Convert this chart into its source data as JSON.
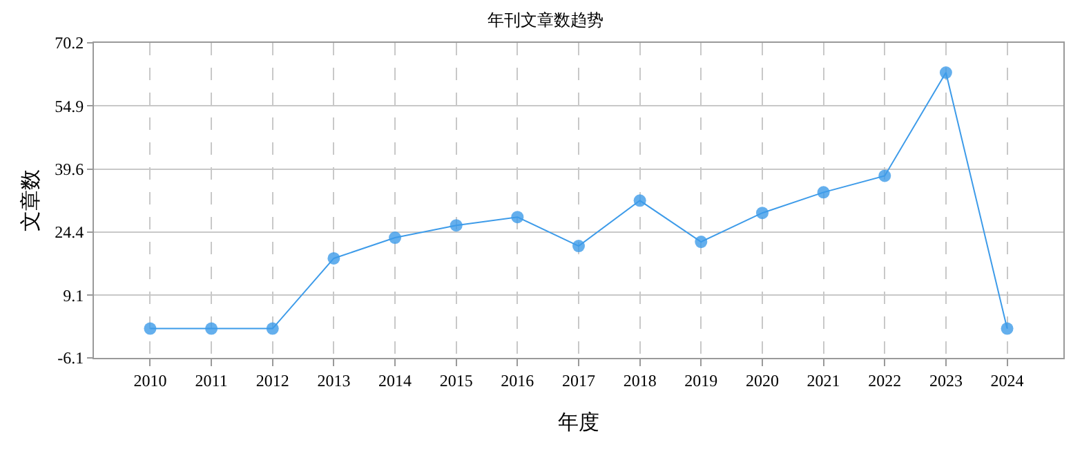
{
  "chart_data": {
    "type": "line",
    "title": "年刊文章数趋势",
    "xlabel": "年度",
    "ylabel": "文章数",
    "categories": [
      "2010",
      "2011",
      "2012",
      "2013",
      "2014",
      "2015",
      "2016",
      "2017",
      "2018",
      "2019",
      "2020",
      "2021",
      "2022",
      "2023",
      "2024"
    ],
    "series": [
      {
        "color": "#3d9be9",
        "values": [
          1,
          1,
          1,
          18,
          23,
          26,
          28,
          21,
          32,
          22,
          29,
          34,
          38,
          63,
          1
        ]
      }
    ],
    "ylim": [
      -6.1,
      70.2
    ],
    "yticks": [
      -6.1,
      9.1,
      24.4,
      39.6,
      54.9,
      70.2
    ],
    "grid": true,
    "marker": "circle",
    "line_style": "solid"
  }
}
